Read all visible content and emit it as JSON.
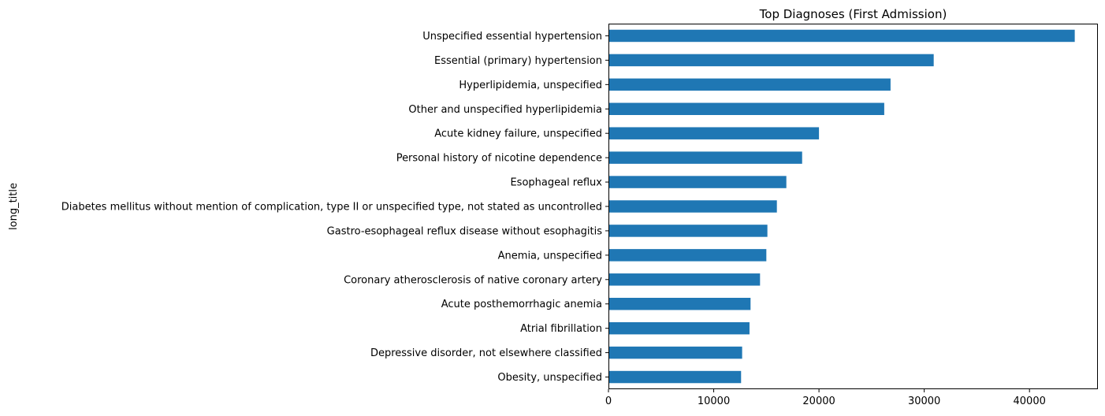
{
  "chart_data": {
    "type": "bar",
    "orientation": "horizontal",
    "title": "Top Diagnoses (First Admission)",
    "xlabel": "",
    "ylabel": "long_title",
    "xlim": [
      0,
      46500
    ],
    "xticks": [
      0,
      10000,
      20000,
      30000,
      40000
    ],
    "xtick_labels": [
      "0",
      "10000",
      "20000",
      "30000",
      "40000"
    ],
    "grid": false,
    "legend": "none",
    "bar_color": "#1f77b4",
    "categories": [
      "Unspecified essential hypertension",
      "Essential (primary) hypertension",
      "Hyperlipidemia, unspecified",
      "Other and unspecified hyperlipidemia",
      "Acute kidney failure, unspecified",
      "Personal history of nicotine dependence",
      "Esophageal reflux",
      "Diabetes mellitus without mention of complication, type II or unspecified type, not stated as uncontrolled",
      "Gastro-esophageal reflux disease without esophagitis",
      "Anemia, unspecified",
      "Coronary atherosclerosis of native coronary artery",
      "Acute posthemorrhagic anemia",
      "Atrial fibrillation",
      "Depressive disorder, not elsewhere classified",
      "Obesity, unspecified"
    ],
    "values": [
      44300,
      30900,
      26800,
      26200,
      20000,
      18400,
      16900,
      16000,
      15100,
      15000,
      14400,
      13500,
      13400,
      12700,
      12600
    ]
  }
}
